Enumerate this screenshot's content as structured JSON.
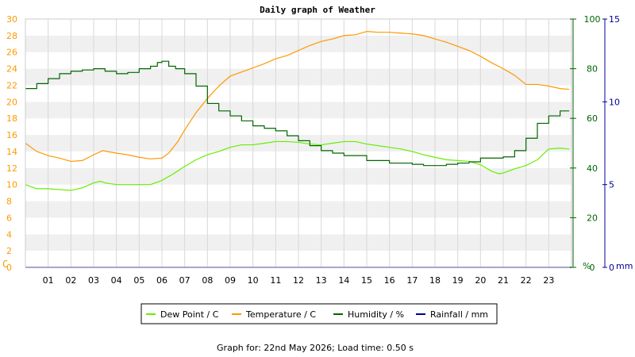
{
  "chart_data": {
    "type": "line",
    "title": "Daily graph of Weather",
    "footer": "Graph for: 22nd May 2026; Load time: 0.50 s",
    "x_unit": "hour",
    "x_ticks": [
      "01",
      "02",
      "03",
      "04",
      "05",
      "06",
      "07",
      "08",
      "09",
      "10",
      "11",
      "12",
      "13",
      "14",
      "15",
      "16",
      "17",
      "18",
      "19",
      "20",
      "21",
      "22",
      "23"
    ],
    "xlim": [
      0,
      24
    ],
    "axes": {
      "temperature": {
        "unit_label": "C",
        "ylim": [
          0,
          30
        ],
        "ticks": [
          "0",
          "2",
          "4",
          "6",
          "8",
          "10",
          "12",
          "14",
          "16",
          "18",
          "20",
          "22",
          "24",
          "26",
          "28",
          "30"
        ],
        "color": "#ff9900"
      },
      "humidity": {
        "unit_label": "%",
        "ylim": [
          0,
          100
        ],
        "ticks": [
          "0",
          "20",
          "40",
          "60",
          "80",
          "100"
        ],
        "color": "#006600"
      },
      "rainfall": {
        "unit_label": "mm",
        "ylim": [
          0,
          15
        ],
        "ticks": [
          "0",
          "5",
          "10",
          "15"
        ],
        "color": "#000099"
      }
    },
    "grid": true,
    "legend_position": "bottom",
    "series": [
      {
        "name": "Dew Point / C",
        "axis": "temperature",
        "color": "#66ee00",
        "x": [
          0,
          0.5,
          1,
          1.5,
          2,
          2.5,
          3,
          3.3,
          3.5,
          4,
          4.5,
          5,
          5.5,
          6,
          6.5,
          7,
          7.5,
          8,
          8.5,
          9,
          9.5,
          10,
          10.5,
          11,
          11.5,
          12,
          12.5,
          13,
          13.5,
          14,
          14.5,
          15,
          15.5,
          16,
          16.5,
          17,
          17.5,
          18,
          18.5,
          19,
          19.5,
          20,
          20.5,
          20.8,
          21,
          21.5,
          22,
          22.5,
          23,
          23.5,
          23.9
        ],
        "y": [
          10.0,
          9.5,
          9.5,
          9.4,
          9.3,
          9.6,
          10.2,
          10.4,
          10.2,
          10.0,
          10.0,
          10.0,
          10.0,
          10.5,
          11.3,
          12.2,
          13.0,
          13.6,
          14.0,
          14.5,
          14.8,
          14.8,
          15.0,
          15.2,
          15.2,
          15.1,
          14.9,
          14.8,
          15.0,
          15.2,
          15.2,
          14.9,
          14.7,
          14.5,
          14.3,
          14.0,
          13.6,
          13.3,
          13.0,
          12.9,
          12.8,
          12.4,
          11.6,
          11.3,
          11.4,
          11.9,
          12.3,
          13.0,
          14.3,
          14.4,
          14.3
        ]
      },
      {
        "name": "Temperature / C",
        "axis": "temperature",
        "color": "#ff9900",
        "x": [
          0,
          0.5,
          1,
          1.5,
          2,
          2.5,
          3,
          3.4,
          3.8,
          4,
          4.5,
          5,
          5.5,
          6,
          6.3,
          6.7,
          7,
          7.5,
          8,
          8.5,
          9,
          9.5,
          10,
          10.5,
          11,
          11.5,
          12,
          12.5,
          13,
          13.5,
          14,
          14.5,
          15,
          15.5,
          16,
          16.5,
          17,
          17.5,
          18,
          18.5,
          19,
          19.5,
          20,
          20.5,
          21,
          21.5,
          22,
          22.5,
          23,
          23.5,
          23.9
        ],
        "y": [
          15.0,
          14.0,
          13.5,
          13.2,
          12.8,
          12.9,
          13.6,
          14.1,
          13.9,
          13.8,
          13.6,
          13.3,
          13.1,
          13.2,
          13.8,
          15.2,
          16.6,
          18.7,
          20.4,
          21.9,
          23.1,
          23.6,
          24.1,
          24.6,
          25.2,
          25.6,
          26.2,
          26.8,
          27.3,
          27.6,
          28.0,
          28.1,
          28.5,
          28.4,
          28.4,
          28.3,
          28.2,
          28.0,
          27.6,
          27.2,
          26.7,
          26.2,
          25.5,
          24.7,
          24.0,
          23.2,
          22.1,
          22.1,
          21.9,
          21.6,
          21.5
        ]
      },
      {
        "name": "Humidity / %",
        "axis": "humidity",
        "color": "#006600",
        "x": [
          0,
          0.5,
          1,
          1.5,
          2,
          2.5,
          3,
          3.5,
          4,
          4.5,
          5,
          5.5,
          5.8,
          6,
          6.3,
          6.6,
          7,
          7.5,
          8,
          8.5,
          9,
          9.5,
          10,
          10.5,
          11,
          11.5,
          12,
          12.5,
          13,
          13.5,
          14,
          14.5,
          15,
          15.5,
          16,
          16.5,
          17,
          17.5,
          18,
          18.5,
          19,
          19.5,
          20,
          20.5,
          21,
          21.5,
          22,
          22.5,
          23,
          23.5,
          23.9
        ],
        "y": [
          72,
          74,
          76,
          78,
          79,
          79.5,
          80,
          79,
          78,
          78.5,
          80,
          81,
          82.5,
          83,
          81,
          80,
          78,
          73,
          66,
          63,
          61,
          59,
          57,
          56,
          55,
          53,
          51,
          49,
          47,
          46,
          45,
          45,
          43,
          43,
          42,
          42,
          41.5,
          41,
          41,
          41.5,
          42,
          42.5,
          44,
          44,
          44.5,
          47,
          52,
          58,
          61,
          63,
          63
        ]
      },
      {
        "name": "Rainfall / mm",
        "axis": "rainfall",
        "color": "#000099",
        "x": [
          0,
          24
        ],
        "y": [
          0,
          0
        ]
      }
    ]
  }
}
